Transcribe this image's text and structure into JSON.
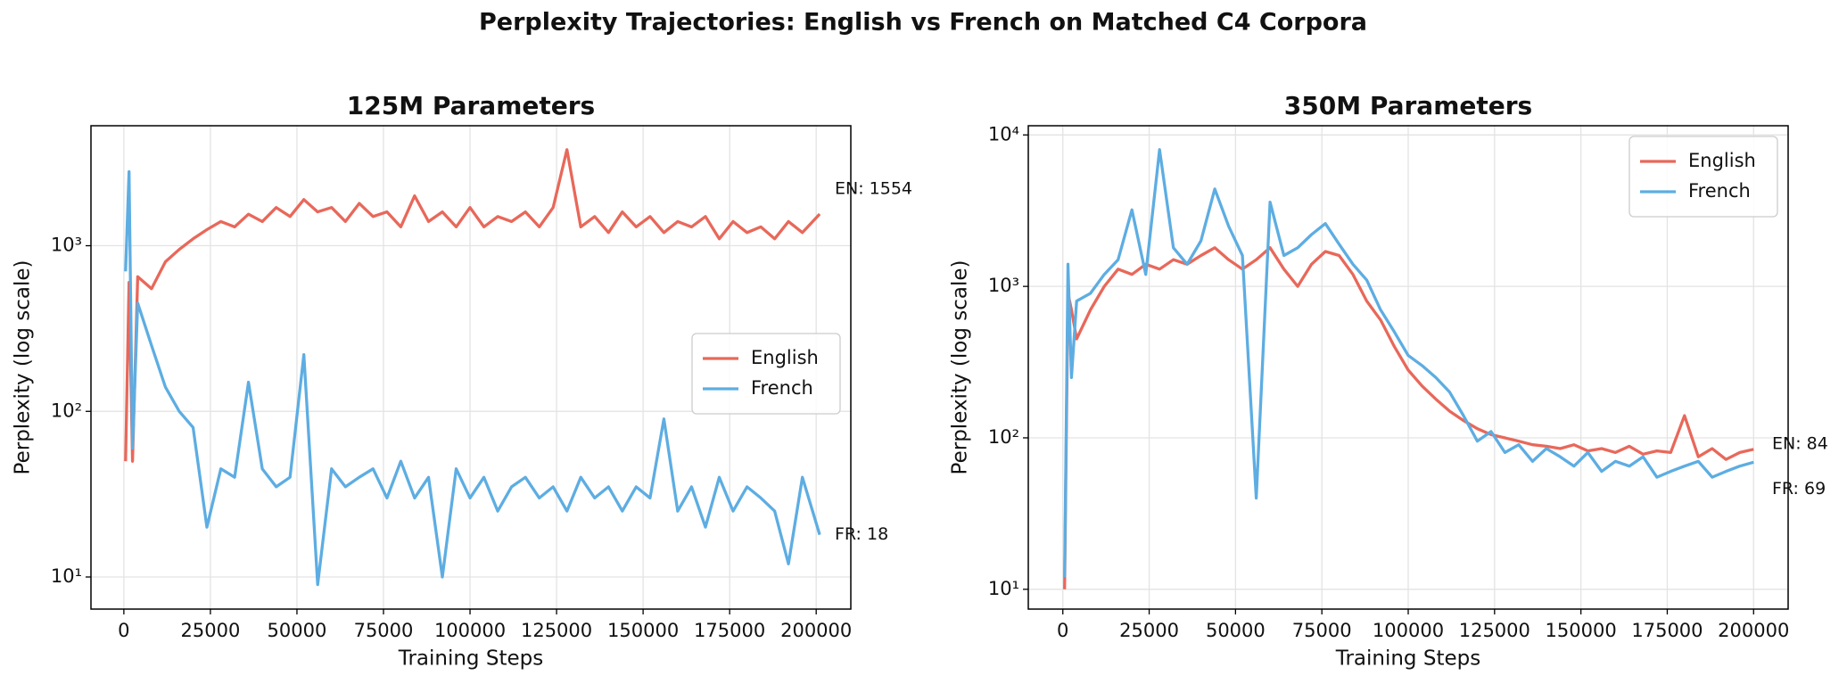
{
  "title": "Perplexity Trajectories: English vs French on Matched C4 Corpora",
  "chart_data": [
    {
      "type": "line",
      "title": "125M Parameters",
      "xlabel": "Training Steps",
      "ylabel": "Perplexity (log scale)",
      "log_y": true,
      "grid": true,
      "legend": "center right",
      "xlim": [
        -9500,
        210000
      ],
      "ylim": [
        6.4,
        5300
      ],
      "xticks": [
        0,
        25000,
        50000,
        75000,
        100000,
        125000,
        150000,
        175000,
        200000
      ],
      "yticks": [
        {
          "value": 10,
          "label": "10¹"
        },
        {
          "value": 100,
          "label": "10²"
        },
        {
          "value": 1000,
          "label": "10³"
        }
      ],
      "x": [
        500,
        1500,
        2500,
        4000,
        8000,
        12000,
        16000,
        20000,
        24000,
        28000,
        32000,
        36000,
        40000,
        44000,
        48000,
        52000,
        56000,
        60000,
        64000,
        68000,
        72000,
        76000,
        80000,
        84000,
        88000,
        92000,
        96000,
        100000,
        104000,
        108000,
        112000,
        116000,
        120000,
        124000,
        128000,
        132000,
        136000,
        140000,
        144000,
        148000,
        152000,
        156000,
        160000,
        164000,
        168000,
        172000,
        176000,
        180000,
        184000,
        188000,
        192000,
        196000,
        201000
      ],
      "series": [
        {
          "name": "English",
          "color": "#e8685a",
          "values": [
            50,
            600,
            50,
            650,
            550,
            800,
            950,
            1100,
            1250,
            1400,
            1300,
            1550,
            1400,
            1700,
            1500,
            1900,
            1600,
            1700,
            1400,
            1800,
            1500,
            1600,
            1300,
            2000,
            1400,
            1600,
            1300,
            1700,
            1300,
            1500,
            1400,
            1600,
            1300,
            1700,
            3800,
            1300,
            1500,
            1200,
            1600,
            1300,
            1500,
            1200,
            1400,
            1300,
            1500,
            1100,
            1400,
            1200,
            1300,
            1100,
            1400,
            1200,
            1554
          ]
        },
        {
          "name": "French",
          "color": "#5dade2",
          "values": [
            700,
            2800,
            60,
            450,
            250,
            140,
            100,
            80,
            20,
            45,
            40,
            150,
            45,
            35,
            40,
            220,
            9,
            45,
            35,
            40,
            45,
            30,
            50,
            30,
            40,
            10,
            45,
            30,
            40,
            25,
            35,
            40,
            30,
            35,
            25,
            40,
            30,
            35,
            25,
            35,
            30,
            90,
            25,
            35,
            20,
            40,
            25,
            35,
            30,
            25,
            12,
            40,
            18
          ]
        }
      ],
      "annotations": [
        {
          "text": "EN: 1554",
          "color": "#e74c3c"
        },
        {
          "text": "FR: 18",
          "color": "#3498db"
        }
      ]
    },
    {
      "type": "line",
      "title": "350M Parameters",
      "xlabel": "Training Steps",
      "ylabel": "Perplexity (log scale)",
      "log_y": true,
      "grid": true,
      "legend": "upper right",
      "xlim": [
        -10000,
        210000
      ],
      "ylim": [
        7.4,
        11500
      ],
      "xticks": [
        0,
        25000,
        50000,
        75000,
        100000,
        125000,
        150000,
        175000,
        200000
      ],
      "yticks": [
        {
          "value": 10,
          "label": "10¹"
        },
        {
          "value": 100,
          "label": "10²"
        },
        {
          "value": 1000,
          "label": "10³"
        },
        {
          "value": 10000,
          "label": "10⁴"
        }
      ],
      "x": [
        500,
        1500,
        2500,
        4000,
        8000,
        12000,
        16000,
        20000,
        24000,
        28000,
        32000,
        36000,
        40000,
        44000,
        48000,
        52000,
        56000,
        60000,
        64000,
        68000,
        72000,
        76000,
        80000,
        84000,
        88000,
        92000,
        96000,
        100000,
        104000,
        108000,
        112000,
        116000,
        120000,
        124000,
        128000,
        132000,
        136000,
        140000,
        144000,
        148000,
        152000,
        156000,
        160000,
        164000,
        168000,
        172000,
        176000,
        180000,
        184000,
        188000,
        192000,
        196000,
        200000
      ],
      "series": [
        {
          "name": "English",
          "color": "#e8685a",
          "values": [
            10,
            900,
            700,
            450,
            700,
            1000,
            1300,
            1200,
            1400,
            1300,
            1500,
            1400,
            1600,
            1800,
            1500,
            1300,
            1500,
            1800,
            1300,
            1000,
            1400,
            1700,
            1600,
            1200,
            800,
            600,
            400,
            280,
            220,
            180,
            150,
            130,
            115,
            105,
            100,
            95,
            90,
            88,
            85,
            90,
            82,
            85,
            80,
            88,
            78,
            82,
            80,
            140,
            75,
            85,
            72,
            80,
            84
          ]
        },
        {
          "name": "French",
          "color": "#5dade2",
          "values": [
            12,
            1400,
            250,
            800,
            900,
            1200,
            1500,
            3200,
            1200,
            8000,
            1800,
            1400,
            2000,
            4400,
            2500,
            1600,
            40,
            3600,
            1600,
            1800,
            2200,
            2600,
            1900,
            1400,
            1100,
            700,
            500,
            350,
            300,
            250,
            200,
            140,
            95,
            110,
            80,
            90,
            70,
            85,
            75,
            65,
            80,
            60,
            70,
            65,
            75,
            55,
            60,
            65,
            70,
            55,
            60,
            65,
            69
          ]
        }
      ],
      "annotations": [
        {
          "text": "EN: 84",
          "color": "#e74c3c"
        },
        {
          "text": "FR: 69",
          "color": "#3498db"
        }
      ]
    }
  ]
}
